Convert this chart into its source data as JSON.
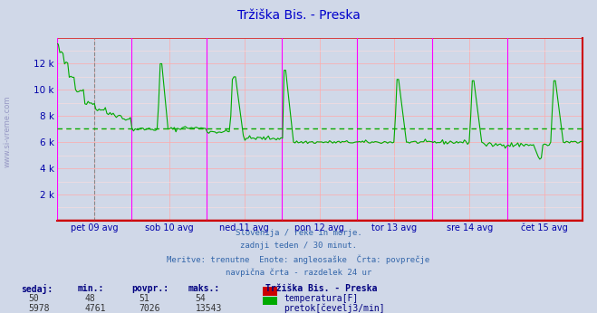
{
  "title": "Tržiška Bis. - Preska",
  "title_color": "#0000cc",
  "bg_color": "#d0d8e8",
  "plot_bg_color": "#d0d8e8",
  "grid_major_color": "#ffaaaa",
  "grid_minor_color": "#ffdddd",
  "flow_color": "#00aa00",
  "temp_color": "#cc0000",
  "avg_line_color": "#00aa00",
  "vline_solid_color": "#ff00ff",
  "vline_dashed_color": "#888888",
  "axis_color": "#0000cc",
  "bottom_line_color": "#cc0000",
  "right_line_color": "#cc0000",
  "label_color": "#0000aa",
  "watermark_color": "#8888bb",
  "ylim": [
    0,
    14000
  ],
  "avg_flow": 7026,
  "x_labels": [
    "pet 09 avg",
    "sob 10 avg",
    "ned 11 avg",
    "pon 12 avg",
    "tor 13 avg",
    "sre 14 avg",
    "čet 15 avg"
  ],
  "footer_lines": [
    "Slovenija / reke in morje.",
    "zadnji teden / 30 minut.",
    "Meritve: trenutne  Enote: angleosaške  Črta: povprečje",
    "navpična črta - razdelek 24 ur"
  ],
  "table_headers": [
    "sedaj:",
    "min.:",
    "povpr.:",
    "maks.:"
  ],
  "table_temp": [
    "50",
    "48",
    "51",
    "54"
  ],
  "table_flow": [
    "5978",
    "4761",
    "7026",
    "13543"
  ],
  "legend_title": "Tržiška Bis. - Preska",
  "legend_label_temp": "temperatura[F]",
  "legend_label_flow": "pretok[čevelj3/min]",
  "num_points": 336
}
